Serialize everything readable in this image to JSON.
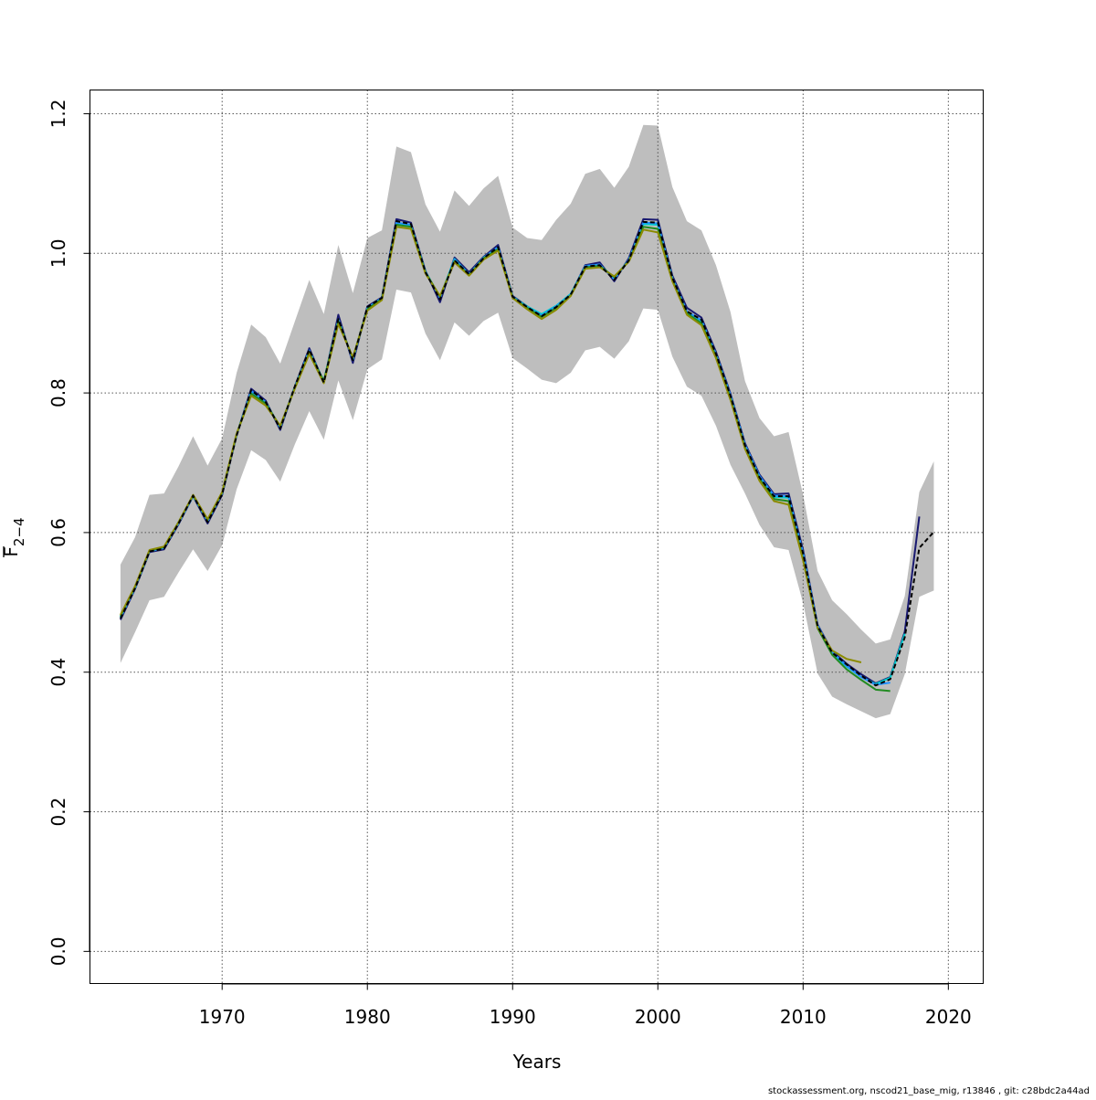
{
  "chart_data": {
    "type": "line",
    "xlabel": "Years",
    "ylabel_main": "F",
    "ylabel_sub": "2−4",
    "footer": "stockassessment.org, nscod21_base_mig, r13846 , git: c28bdc2a44ad",
    "xlim": [
      1960.9,
      2022.4
    ],
    "ylim": [
      -0.046,
      1.234
    ],
    "x_ticks": [
      1970,
      1980,
      1990,
      2000,
      2010,
      2020
    ],
    "y_ticks": [
      0.0,
      0.2,
      0.4,
      0.6,
      0.8,
      1.0,
      1.2
    ],
    "x_tick_labels": [
      "1970",
      "1980",
      "1990",
      "2000",
      "2010",
      "2020"
    ],
    "y_tick_labels": [
      "0.0",
      "0.2",
      "0.4",
      "0.6",
      "0.8",
      "1.0",
      "1.2"
    ],
    "grid": true,
    "band": {
      "color": "#bebebe",
      "x": [
        1963,
        1964,
        1965,
        1966,
        1967,
        1968,
        1969,
        1970,
        1971,
        1972,
        1973,
        1974,
        1975,
        1976,
        1977,
        1978,
        1979,
        1980,
        1981,
        1982,
        1983,
        1984,
        1985,
        1986,
        1987,
        1988,
        1989,
        1990,
        1991,
        1992,
        1993,
        1994,
        1995,
        1996,
        1997,
        1998,
        1999,
        2000,
        2001,
        2002,
        2003,
        2004,
        2005,
        2006,
        2007,
        2008,
        2009,
        2010,
        2011,
        2012,
        2013,
        2014,
        2015,
        2016,
        2017,
        2018,
        2019
      ],
      "upper": [
        0.554,
        0.593,
        0.654,
        0.656,
        0.695,
        0.738,
        0.696,
        0.735,
        0.829,
        0.898,
        0.88,
        0.842,
        0.902,
        0.962,
        0.913,
        1.012,
        0.943,
        1.022,
        1.033,
        1.153,
        1.145,
        1.07,
        1.031,
        1.09,
        1.068,
        1.093,
        1.111,
        1.037,
        1.022,
        1.019,
        1.048,
        1.071,
        1.114,
        1.121,
        1.094,
        1.124,
        1.184,
        1.183,
        1.095,
        1.046,
        1.033,
        0.983,
        0.916,
        0.817,
        0.764,
        0.738,
        0.744,
        0.654,
        0.545,
        0.503,
        0.483,
        0.461,
        0.441,
        0.447,
        0.509,
        0.658,
        0.702
      ],
      "lower": [
        0.413,
        0.457,
        0.503,
        0.508,
        0.543,
        0.576,
        0.545,
        0.582,
        0.662,
        0.718,
        0.704,
        0.673,
        0.726,
        0.774,
        0.733,
        0.818,
        0.761,
        0.834,
        0.848,
        0.948,
        0.944,
        0.885,
        0.847,
        0.901,
        0.882,
        0.903,
        0.915,
        0.85,
        0.835,
        0.819,
        0.814,
        0.829,
        0.861,
        0.866,
        0.849,
        0.874,
        0.921,
        0.919,
        0.852,
        0.809,
        0.796,
        0.753,
        0.697,
        0.656,
        0.611,
        0.579,
        0.575,
        0.499,
        0.398,
        0.365,
        0.354,
        0.344,
        0.334,
        0.34,
        0.397,
        0.508,
        0.517
      ]
    },
    "series": [
      {
        "color": "#000000",
        "dashed": true,
        "x": [
          1963,
          1964,
          1965,
          1966,
          1967,
          1968,
          1969,
          1970,
          1971,
          1972,
          1973,
          1974,
          1975,
          1976,
          1977,
          1978,
          1979,
          1980,
          1981,
          1982,
          1983,
          1984,
          1985,
          1986,
          1987,
          1988,
          1989,
          1990,
          1991,
          1992,
          1993,
          1994,
          1995,
          1996,
          1997,
          1998,
          1999,
          2000,
          2001,
          2002,
          2003,
          2004,
          2005,
          2006,
          2007,
          2008,
          2009,
          2010,
          2011,
          2012,
          2013,
          2014,
          2015,
          2016,
          2017,
          2018,
          2019
        ],
        "values": [
          0.477,
          0.52,
          0.573,
          0.577,
          0.613,
          0.653,
          0.615,
          0.655,
          0.739,
          0.804,
          0.787,
          0.749,
          0.809,
          0.862,
          0.815,
          0.906,
          0.847,
          0.923,
          0.936,
          1.046,
          1.042,
          0.973,
          0.934,
          0.99,
          0.97,
          0.993,
          1.009,
          0.938,
          0.923,
          0.91,
          0.923,
          0.941,
          0.981,
          0.983,
          0.962,
          0.99,
          1.045,
          1.044,
          0.965,
          0.917,
          0.905,
          0.856,
          0.796,
          0.725,
          0.679,
          0.652,
          0.652,
          0.57,
          0.466,
          0.428,
          0.411,
          0.395,
          0.381,
          0.39,
          0.45,
          0.578,
          0.601
        ]
      },
      {
        "color": "#191970",
        "dashed": false,
        "x": [
          1963,
          1964,
          1965,
          1966,
          1967,
          1968,
          1969,
          1970,
          1971,
          1972,
          1973,
          1974,
          1975,
          1976,
          1977,
          1978,
          1979,
          1980,
          1981,
          1982,
          1983,
          1984,
          1985,
          1986,
          1987,
          1988,
          1989,
          1990,
          1991,
          1992,
          1993,
          1994,
          1995,
          1996,
          1997,
          1998,
          1999,
          2000,
          2001,
          2002,
          2003,
          2004,
          2005,
          2006,
          2007,
          2008,
          2009,
          2010,
          2011,
          2012,
          2013,
          2014,
          2015,
          2016,
          2017,
          2018
        ],
        "values": [
          0.475,
          0.519,
          0.572,
          0.576,
          0.612,
          0.652,
          0.613,
          0.654,
          0.74,
          0.806,
          0.789,
          0.747,
          0.809,
          0.864,
          0.815,
          0.912,
          0.843,
          0.924,
          0.937,
          1.049,
          1.044,
          0.975,
          0.93,
          0.994,
          0.973,
          0.995,
          1.012,
          0.939,
          0.924,
          0.911,
          0.923,
          0.941,
          0.983,
          0.987,
          0.96,
          0.993,
          1.049,
          1.048,
          0.968,
          0.922,
          0.908,
          0.859,
          0.799,
          0.728,
          0.683,
          0.655,
          0.656,
          0.575,
          0.468,
          0.43,
          0.412,
          0.397,
          0.384,
          0.393,
          0.458,
          0.623
        ]
      },
      {
        "color": "#00cdcd",
        "dashed": false,
        "x": [
          1963,
          1964,
          1965,
          1966,
          1967,
          1968,
          1969,
          1970,
          1971,
          1972,
          1973,
          1974,
          1975,
          1976,
          1977,
          1978,
          1979,
          1980,
          1981,
          1982,
          1983,
          1984,
          1985,
          1986,
          1987,
          1988,
          1989,
          1990,
          1991,
          1992,
          1993,
          1994,
          1995,
          1996,
          1997,
          1998,
          1999,
          2000,
          2001,
          2002,
          2003,
          2004,
          2005,
          2006,
          2007,
          2008,
          2009,
          2010,
          2011,
          2012,
          2013,
          2014,
          2015,
          2016,
          2017
        ],
        "values": [
          0.479,
          0.521,
          0.574,
          0.579,
          0.614,
          0.653,
          0.617,
          0.657,
          0.741,
          0.802,
          0.786,
          0.751,
          0.808,
          0.86,
          0.817,
          0.905,
          0.848,
          0.921,
          0.936,
          1.043,
          1.04,
          0.974,
          0.937,
          0.992,
          0.97,
          0.994,
          1.008,
          0.938,
          0.924,
          0.913,
          0.925,
          0.942,
          0.981,
          0.983,
          0.965,
          0.99,
          1.042,
          1.041,
          0.964,
          0.916,
          0.903,
          0.855,
          0.795,
          0.724,
          0.679,
          0.651,
          0.65,
          0.567,
          0.465,
          0.427,
          0.408,
          0.393,
          0.383,
          0.392,
          0.455
        ]
      },
      {
        "color": "#1e90ff",
        "dashed": false,
        "x": [
          1963,
          1964,
          1965,
          1966,
          1967,
          1968,
          1969,
          1970,
          1971,
          1972,
          1973,
          1974,
          1975,
          1976,
          1977,
          1978,
          1979,
          1980,
          1981,
          1982,
          1983,
          1984,
          1985,
          1986,
          1987,
          1988,
          1989,
          1990,
          1991,
          1992,
          1993,
          1994,
          1995,
          1996,
          1997,
          1998,
          1999,
          2000,
          2001,
          2002,
          2003,
          2004,
          2005,
          2006,
          2007,
          2008,
          2009,
          2010,
          2011,
          2012,
          2013,
          2014,
          2015,
          2016
        ],
        "values": [
          0.478,
          0.52,
          0.573,
          0.578,
          0.613,
          0.652,
          0.616,
          0.656,
          0.74,
          0.803,
          0.787,
          0.75,
          0.808,
          0.861,
          0.816,
          0.906,
          0.847,
          0.922,
          0.936,
          1.044,
          1.041,
          0.974,
          0.936,
          0.991,
          0.97,
          0.994,
          1.009,
          0.938,
          0.923,
          0.911,
          0.924,
          0.941,
          0.982,
          0.984,
          0.963,
          0.991,
          1.044,
          1.043,
          0.965,
          0.917,
          0.904,
          0.856,
          0.797,
          0.726,
          0.681,
          0.653,
          0.652,
          0.571,
          0.467,
          0.429,
          0.409,
          0.393,
          0.382,
          0.385
        ]
      },
      {
        "color": "#228b22",
        "dashed": false,
        "x": [
          1963,
          1964,
          1965,
          1966,
          1967,
          1968,
          1969,
          1970,
          1971,
          1972,
          1973,
          1974,
          1975,
          1976,
          1977,
          1978,
          1979,
          1980,
          1981,
          1982,
          1983,
          1984,
          1985,
          1986,
          1987,
          1988,
          1989,
          1990,
          1991,
          1992,
          1993,
          1994,
          1995,
          1996,
          1997,
          1998,
          1999,
          2000,
          2001,
          2002,
          2003,
          2004,
          2005,
          2006,
          2007,
          2008,
          2009,
          2010,
          2011,
          2012,
          2013,
          2014,
          2015,
          2016
        ],
        "values": [
          0.48,
          0.522,
          0.574,
          0.579,
          0.615,
          0.653,
          0.618,
          0.657,
          0.741,
          0.799,
          0.785,
          0.752,
          0.807,
          0.858,
          0.817,
          0.903,
          0.85,
          0.92,
          0.935,
          1.041,
          1.038,
          0.973,
          0.938,
          0.989,
          0.969,
          0.993,
          1.006,
          0.937,
          0.922,
          0.909,
          0.922,
          0.94,
          0.98,
          0.982,
          0.966,
          0.989,
          1.038,
          1.035,
          0.962,
          0.914,
          0.9,
          0.853,
          0.793,
          0.722,
          0.677,
          0.648,
          0.645,
          0.562,
          0.463,
          0.425,
          0.404,
          0.389,
          0.375,
          0.373
        ]
      },
      {
        "color": "#8b8b00",
        "dashed": false,
        "x": [
          1963,
          1964,
          1965,
          1966,
          1967,
          1968,
          1969,
          1970,
          1971,
          1972,
          1973,
          1974,
          1975,
          1976,
          1977,
          1978,
          1979,
          1980,
          1981,
          1982,
          1983,
          1984,
          1985,
          1986,
          1987,
          1988,
          1989,
          1990,
          1991,
          1992,
          1993,
          1994,
          1995,
          1996,
          1997,
          1998,
          1999,
          2000,
          2001,
          2002,
          2003,
          2004,
          2005,
          2006,
          2007,
          2008,
          2009,
          2010,
          2011,
          2012,
          2013,
          2014
        ],
        "values": [
          0.482,
          0.523,
          0.575,
          0.58,
          0.615,
          0.654,
          0.619,
          0.658,
          0.742,
          0.796,
          0.782,
          0.753,
          0.806,
          0.856,
          0.814,
          0.899,
          0.851,
          0.918,
          0.933,
          1.038,
          1.035,
          0.971,
          0.939,
          0.987,
          0.968,
          0.991,
          1.004,
          0.936,
          0.92,
          0.906,
          0.919,
          0.939,
          0.978,
          0.98,
          0.967,
          0.988,
          1.034,
          1.03,
          0.96,
          0.912,
          0.897,
          0.85,
          0.79,
          0.72,
          0.674,
          0.645,
          0.64,
          0.56,
          0.464,
          0.431,
          0.419,
          0.414
        ]
      }
    ]
  }
}
